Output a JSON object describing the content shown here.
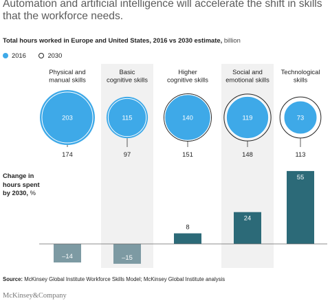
{
  "headline": "Automation and artificial intelligence will accelerate the shift in skills that the workforce needs.",
  "subtitle": "Total hours worked in Europe and United States, 2016 vs 2030 estimate,",
  "subtitle_unit": "billion",
  "legend": {
    "filled": "2016",
    "hollow": "2030"
  },
  "ylabel": {
    "line1": "Change in",
    "line2": "hours spent",
    "line3": "by 2030,",
    "unit": "%"
  },
  "source_label": "Source:",
  "source_text": "McKinsey Global Institute Workforce Skills Model; McKinsey Global Institute analysis",
  "brand": "McKinsey&Company",
  "colors": {
    "circle_2016": "#3ea9e8",
    "bar_positive": "#2c6a78",
    "bar_negative": "#7d9aa3",
    "column_shade": "#f1f1f1"
  },
  "chart_data": {
    "type": "bar",
    "categories": [
      [
        "Physical and",
        "manual skills"
      ],
      [
        "Basic",
        "cognitive skills"
      ],
      [
        "Higher",
        "cognitive skills"
      ],
      [
        "Social and",
        "emotional skills"
      ],
      [
        "Technological",
        "skills"
      ]
    ],
    "hours_2016": [
      203,
      115,
      140,
      119,
      73
    ],
    "hours_2030": [
      174,
      97,
      151,
      148,
      113
    ],
    "change_pct": [
      -14,
      -15,
      8,
      24,
      55
    ],
    "change_labels": [
      "–14",
      "–15",
      "8",
      "24",
      "55"
    ]
  }
}
